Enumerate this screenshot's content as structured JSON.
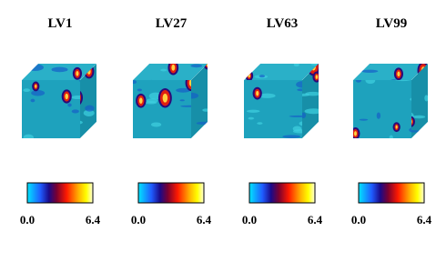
{
  "panels": [
    {
      "title": "LV1",
      "colorbar": {
        "min": "0.0",
        "max": "6.4"
      }
    },
    {
      "title": "LV27",
      "colorbar": {
        "min": "0.0",
        "max": "6.4"
      }
    },
    {
      "title": "LV63",
      "colorbar": {
        "min": "0.0",
        "max": "6.4"
      }
    },
    {
      "title": "LV99",
      "colorbar": {
        "min": "0.0",
        "max": "6.4"
      }
    }
  ]
}
